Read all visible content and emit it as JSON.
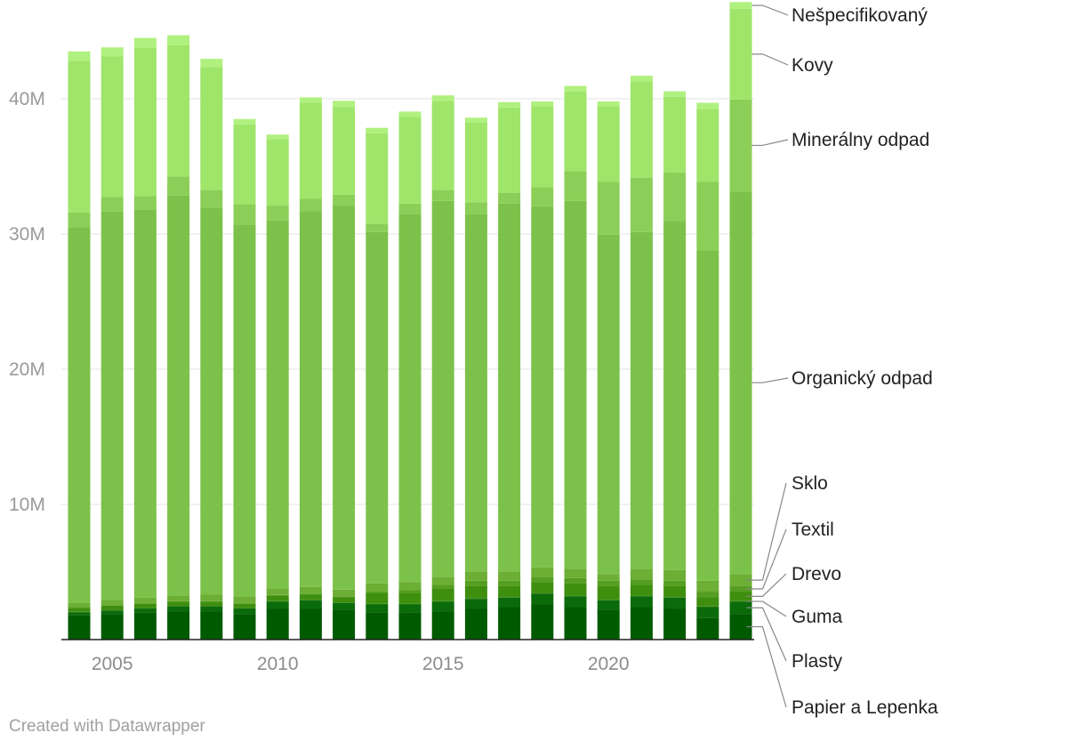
{
  "chart_data": {
    "type": "bar",
    "stacked": true,
    "x": [
      2004,
      2005,
      2006,
      2007,
      2008,
      2009,
      2010,
      2011,
      2012,
      2013,
      2014,
      2015,
      2016,
      2017,
      2018,
      2019,
      2020,
      2021,
      2022,
      2023,
      2024
    ],
    "x_ticks": [
      "2005",
      "2010",
      "2015",
      "2020"
    ],
    "x_tick_values": [
      2005,
      2010,
      2015,
      2020
    ],
    "y_ticks": [
      "10M",
      "20M",
      "30M",
      "40M"
    ],
    "y_tick_values": [
      10000000,
      20000000,
      30000000,
      40000000
    ],
    "ylim": [
      0,
      46800000
    ],
    "grid": true,
    "legend": "inline-right",
    "series": [
      {
        "name": "Papier a Lepenka",
        "color": "#005a00",
        "values": [
          1.8,
          1.9,
          2.0,
          2.1,
          2.1,
          1.9,
          2.3,
          2.3,
          2.2,
          2.0,
          2.0,
          2.1,
          2.3,
          2.4,
          2.6,
          2.4,
          2.2,
          2.4,
          2.3,
          1.6,
          1.9
        ]
      },
      {
        "name": "Plasty",
        "color": "#0b6b0b",
        "values": [
          0.2,
          0.25,
          0.3,
          0.35,
          0.35,
          0.4,
          0.5,
          0.6,
          0.5,
          0.6,
          0.6,
          0.7,
          0.7,
          0.7,
          0.8,
          0.8,
          0.7,
          0.8,
          0.8,
          0.8,
          0.9
        ]
      },
      {
        "name": "Guma",
        "color": "#2a7d0a",
        "values": [
          0.05,
          0.05,
          0.05,
          0.05,
          0.05,
          0.05,
          0.05,
          0.05,
          0.05,
          0.05,
          0.05,
          0.05,
          0.05,
          0.05,
          0.05,
          0.05,
          0.05,
          0.05,
          0.05,
          0.05,
          0.05
        ]
      },
      {
        "name": "Drevo",
        "color": "#3f8f0f",
        "values": [
          0.3,
          0.3,
          0.3,
          0.3,
          0.3,
          0.3,
          0.4,
          0.4,
          0.4,
          0.8,
          0.8,
          0.9,
          0.9,
          0.8,
          0.8,
          0.9,
          1.0,
          0.8,
          0.8,
          0.7,
          0.7
        ]
      },
      {
        "name": "Textil",
        "color": "#569e22",
        "values": [
          0.05,
          0.05,
          0.05,
          0.05,
          0.05,
          0.05,
          0.05,
          0.05,
          0.05,
          0.1,
          0.2,
          0.3,
          0.4,
          0.4,
          0.4,
          0.4,
          0.4,
          0.4,
          0.4,
          0.4,
          0.4
        ]
      },
      {
        "name": "Sklo",
        "color": "#6dae35",
        "values": [
          0.3,
          0.4,
          0.4,
          0.4,
          0.5,
          0.5,
          0.5,
          0.5,
          0.5,
          0.6,
          0.6,
          0.6,
          0.7,
          0.7,
          0.7,
          0.7,
          0.5,
          0.8,
          0.8,
          0.8,
          0.9
        ]
      },
      {
        "name": "Organický odpad",
        "color": "#7cc24a",
        "values": [
          27.8,
          28.7,
          28.7,
          29.6,
          28.6,
          27.5,
          27.2,
          27.8,
          28.4,
          26.0,
          27.2,
          27.8,
          26.4,
          27.2,
          26.7,
          27.2,
          25.1,
          24.9,
          25.8,
          24.4,
          28.3
        ]
      },
      {
        "name": "Minerálny odpad",
        "color": "#8ccf58",
        "values": [
          1.1,
          1.1,
          1.0,
          1.4,
          1.3,
          1.5,
          1.1,
          0.9,
          0.8,
          0.6,
          0.8,
          0.8,
          0.9,
          0.8,
          1.4,
          2.2,
          3.9,
          4.0,
          3.6,
          5.1,
          6.8
        ]
      },
      {
        "name": "Kovy",
        "color": "#9fe56a",
        "values": [
          11.2,
          10.4,
          11.0,
          9.7,
          9.1,
          5.9,
          4.9,
          7.1,
          6.5,
          6.7,
          6.4,
          6.6,
          5.9,
          6.3,
          6.0,
          5.9,
          5.6,
          7.1,
          5.6,
          5.4,
          6.7
        ]
      },
      {
        "name": "Nešpecifikovaný",
        "color": "#b0f07f",
        "values": [
          0.7,
          0.65,
          0.7,
          0.75,
          0.6,
          0.4,
          0.35,
          0.4,
          0.45,
          0.4,
          0.4,
          0.4,
          0.35,
          0.4,
          0.35,
          0.4,
          0.35,
          0.45,
          0.4,
          0.45,
          0.5
        ]
      }
    ]
  },
  "credit": "Created with Datawrapper"
}
